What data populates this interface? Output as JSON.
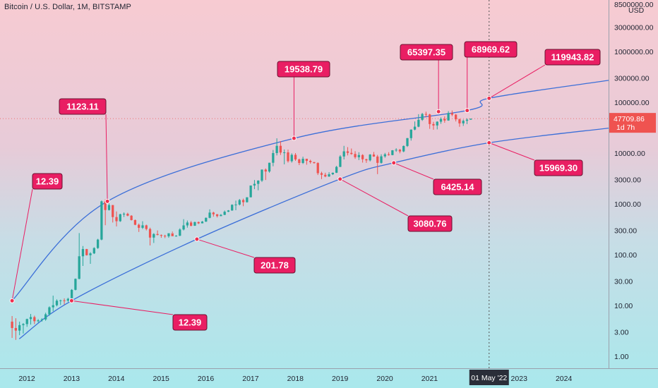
{
  "chart_data": {
    "type": "candlestick",
    "title": "Bitcoin / U.S. Dollar, 1M, BITSTAMP",
    "scale": "log",
    "y_unit": "USD",
    "ylim": [
      0.6,
      8500000
    ],
    "y_ticks": [
      "8500000.00",
      "3000000.00",
      "1000000.00",
      "300000.00",
      "100000.00",
      "30000.00",
      "10000.00",
      "3000.00",
      "1000.00",
      "300.00",
      "100.00",
      "30.00",
      "10.00",
      "3.00",
      "1.00"
    ],
    "x_ticks": [
      "2012",
      "2013",
      "2014",
      "2015",
      "2016",
      "2017",
      "2018",
      "2019",
      "2020",
      "2021",
      "2023",
      "2024"
    ],
    "x_range": [
      2011.4,
      2025.0
    ],
    "current_price": {
      "value": 47709.86,
      "label": "47709.86",
      "countdown": "1d 7h"
    },
    "crosshair_date": {
      "x": 2022.33,
      "label": "01 May '22"
    },
    "candles_x_start": 2011.67,
    "candles": [
      [
        4.8,
        6.2,
        2.3,
        3.6
      ],
      [
        3.6,
        5.6,
        2.1,
        3.2
      ],
      [
        3.2,
        4.8,
        2.6,
        4.1
      ],
      [
        4.1,
        4.5,
        2.8,
        4.3
      ],
      [
        4.3,
        5.5,
        3.8,
        5.4
      ],
      [
        5.4,
        6.8,
        4.2,
        5.9
      ],
      [
        5.9,
        6.3,
        4.3,
        4.9
      ],
      [
        4.9,
        5.4,
        4.6,
        5.1
      ],
      [
        5.1,
        5.6,
        4.8,
        5.3
      ],
      [
        5.3,
        7.2,
        5.0,
        6.7
      ],
      [
        6.7,
        9.6,
        6.3,
        9.2
      ],
      [
        9.2,
        15.6,
        7.7,
        10.1
      ],
      [
        10.1,
        13.2,
        9.6,
        12.4
      ],
      [
        12.4,
        13.0,
        10.2,
        12.6
      ],
      [
        12.6,
        13.8,
        10.5,
        12.4
      ],
      [
        12.4,
        14.2,
        11.8,
        13.5
      ],
      [
        13.5,
        21.0,
        13.2,
        20.3
      ],
      [
        20.3,
        34.0,
        19.8,
        33.4
      ],
      [
        33.4,
        266.0,
        32.8,
        93.0
      ],
      [
        93.0,
        148.0,
        60.0,
        129.0
      ],
      [
        129.0,
        130.0,
        96.0,
        97.6
      ],
      [
        97.6,
        112.0,
        66.0,
        106.0
      ],
      [
        106.0,
        140.0,
        103.0,
        135.0
      ],
      [
        135.0,
        205.0,
        130.0,
        198.0
      ],
      [
        198.0,
        1163.0,
        192.0,
        1123.11
      ],
      [
        1123.0,
        1230.0,
        380.0,
        757.0
      ],
      [
        757.0,
        1030.0,
        740.0,
        947.0
      ],
      [
        947.0,
        950.0,
        430.0,
        550.0
      ],
      [
        550.0,
        710.0,
        360.0,
        456.0
      ],
      [
        456.0,
        640.0,
        442.0,
        625.0
      ],
      [
        625.0,
        680.0,
        552.0,
        639.0
      ],
      [
        639.0,
        670.0,
        570.0,
        585.0
      ],
      [
        585.0,
        600.0,
        470.0,
        480.0
      ],
      [
        480.0,
        492.0,
        380.0,
        388.0
      ],
      [
        388.0,
        410.0,
        280.0,
        338.0
      ],
      [
        338.0,
        455.0,
        320.0,
        378.0
      ],
      [
        378.0,
        390.0,
        300.0,
        320.0
      ],
      [
        320.0,
        340.0,
        152.0,
        217.0
      ],
      [
        217.0,
        265.0,
        170.0,
        255.0
      ],
      [
        255.0,
        300.0,
        240.0,
        244.0
      ],
      [
        244.0,
        250.0,
        215.0,
        236.0
      ],
      [
        236.0,
        247.0,
        212.0,
        230.0
      ],
      [
        230.0,
        250.0,
        215.0,
        264.0
      ],
      [
        264.0,
        285.0,
        270.0,
        231.0
      ],
      [
        231.0,
        242.0,
        226.0,
        236.0
      ],
      [
        236.0,
        330.0,
        232.0,
        313.0
      ],
      [
        313.0,
        500.0,
        300.0,
        377.0
      ],
      [
        377.0,
        470.0,
        340.0,
        430.0
      ],
      [
        430.0,
        460.0,
        360.0,
        371.0
      ],
      [
        371.0,
        446.0,
        368.0,
        438.0
      ],
      [
        438.0,
        450.0,
        400.0,
        414.0
      ],
      [
        414.0,
        460.0,
        414.0,
        448.0
      ],
      [
        448.0,
        540.0,
        440.0,
        531.0
      ],
      [
        531.0,
        780.0,
        520.0,
        674.0
      ],
      [
        674.0,
        700.0,
        560.0,
        624.0
      ],
      [
        624.0,
        630.0,
        540.0,
        575.0
      ],
      [
        575.0,
        630.0,
        570.0,
        608.0
      ],
      [
        608.0,
        740.0,
        600.0,
        700.0
      ],
      [
        700.0,
        755.0,
        690.0,
        742.0
      ],
      [
        742.0,
        980.0,
        730.0,
        960.0
      ],
      [
        960.0,
        1160.0,
        750.0,
        970.0
      ],
      [
        970.0,
        1250.0,
        930.0,
        1190.0
      ],
      [
        1190.0,
        1270.0,
        900.0,
        1080.0
      ],
      [
        1080.0,
        1340.0,
        1060.0,
        1350.0
      ],
      [
        1350.0,
        2300.0,
        1340.0,
        2300.0
      ],
      [
        2300.0,
        2950.0,
        1950.0,
        2480.0
      ],
      [
        2480.0,
        2920.0,
        1850.0,
        2870.0
      ],
      [
        2870.0,
        4760.0,
        2700.0,
        4730.0
      ],
      [
        4730.0,
        4980.0,
        2950.0,
        4340.0
      ],
      [
        4340.0,
        6470.0,
        4110.0,
        6450.0
      ],
      [
        6450.0,
        11500.0,
        5500.0,
        10000.0
      ],
      [
        10000.0,
        19538.79,
        9000.0,
        13900.0
      ],
      [
        13900.0,
        17200.0,
        9200.0,
        10230.0
      ],
      [
        10230.0,
        11780.0,
        6000.0,
        10330.0
      ],
      [
        10330.0,
        11700.0,
        6500.0,
        6930.0
      ],
      [
        6930.0,
        9900.0,
        6500.0,
        9240.0
      ],
      [
        9240.0,
        9990.0,
        7040.0,
        7500.0
      ],
      [
        7500.0,
        7790.0,
        5800.0,
        6390.0
      ],
      [
        6390.0,
        8500.0,
        6100.0,
        7730.0
      ],
      [
        7730.0,
        7500.0,
        5900.0,
        7030.0
      ],
      [
        7030.0,
        7400.0,
        6200.0,
        6630.0
      ],
      [
        6630.0,
        6700.0,
        6200.0,
        6370.0
      ],
      [
        6370.0,
        6600.0,
        3700.0,
        4020.0
      ],
      [
        4020.0,
        4300.0,
        3080.76,
        3740.0
      ],
      [
        3740.0,
        4100.0,
        3350.0,
        3460.0
      ],
      [
        3460.0,
        4200.0,
        3400.0,
        3830.0
      ],
      [
        3830.0,
        4140.0,
        3700.0,
        4100.0
      ],
      [
        4100.0,
        5600.0,
        4050.0,
        5350.0
      ],
      [
        5350.0,
        9100.0,
        5300.0,
        8570.0
      ],
      [
        8570.0,
        13880.0,
        7500.0,
        10820.0
      ],
      [
        10820.0,
        13100.0,
        9000.0,
        10080.0
      ],
      [
        10080.0,
        12300.0,
        9300.0,
        9600.0
      ],
      [
        9600.0,
        10900.0,
        7700.0,
        8300.0
      ],
      [
        8300.0,
        10400.0,
        7300.0,
        9150.0
      ],
      [
        9150.0,
        9500.0,
        6500.0,
        7550.0
      ],
      [
        7550.0,
        7750.0,
        6425.14,
        7200.0
      ],
      [
        7200.0,
        9550.0,
        6850.0,
        9350.0
      ],
      [
        9350.0,
        10500.0,
        8450.0,
        8550.0
      ],
      [
        8550.0,
        9200.0,
        3850.0,
        6420.0
      ],
      [
        6420.0,
        9480.0,
        6200.0,
        8630.0
      ],
      [
        8630.0,
        10080.0,
        8100.0,
        9450.0
      ],
      [
        9450.0,
        10400.0,
        8900.0,
        9140.0
      ],
      [
        9140.0,
        11450.0,
        9050.0,
        11350.0
      ],
      [
        11350.0,
        12470.0,
        10600.0,
        11650.0
      ],
      [
        11650.0,
        12050.0,
        9900.0,
        10780.0
      ],
      [
        10780.0,
        14100.0,
        10400.0,
        13800.0
      ],
      [
        13800.0,
        19850.0,
        13200.0,
        19700.0
      ],
      [
        19700.0,
        29300.0,
        17600.0,
        28990.0
      ],
      [
        28990.0,
        41950.0,
        28100.0,
        33100.0
      ],
      [
        33100.0,
        58350.0,
        32300.0,
        45200.0
      ],
      [
        45200.0,
        61800.0,
        43000.0,
        58800.0
      ],
      [
        58800.0,
        65397.35,
        50500.0,
        57700.0
      ],
      [
        57700.0,
        59500.0,
        30000.0,
        37300.0
      ],
      [
        37300.0,
        41300.0,
        28800.0,
        35000.0
      ],
      [
        35000.0,
        42200.0,
        29300.0,
        41500.0
      ],
      [
        41500.0,
        50500.0,
        37700.0,
        47100.0
      ],
      [
        47100.0,
        52900.0,
        39600.0,
        43800.0
      ],
      [
        43800.0,
        67000.0,
        43300.0,
        61300.0
      ],
      [
        61300.0,
        68969.62,
        53250.0,
        57000.0
      ],
      [
        57000.0,
        59000.0,
        42000.0,
        46200.0
      ],
      [
        46200.0,
        47900.0,
        32950.0,
        38500.0
      ],
      [
        38500.0,
        45850.0,
        34300.0,
        43200.0
      ],
      [
        43200.0,
        48200.0,
        37200.0,
        45500.0
      ],
      [
        45500.0,
        47400.0,
        45300.0,
        47709.86
      ]
    ],
    "series": [
      {
        "name": "",
        "type": "upper_curve",
        "points": [
          [
            2011.67,
            12.39
          ],
          [
            2013.8,
            1123.11
          ],
          [
            2017.97,
            19538.79
          ],
          [
            2021.84,
            68969.62
          ],
          [
            2022.33,
            119943.82
          ],
          [
            2025.0,
            270000.0
          ]
        ]
      },
      {
        "name": "",
        "type": "lower_curve",
        "points": [
          [
            2011.83,
            2.2
          ],
          [
            2013.0,
            12.39
          ],
          [
            2015.8,
            201.78
          ],
          [
            2019.0,
            3080.76
          ],
          [
            2020.2,
            6425.14
          ],
          [
            2022.33,
            15969.3
          ],
          [
            2025.0,
            31000.0
          ]
        ]
      }
    ],
    "annotations": [
      {
        "label": "12.39",
        "value": 12.39,
        "x": 2011.67,
        "y": 12.39
      },
      {
        "label": "1123.11",
        "value": 1123.11,
        "x": 2013.8,
        "y": 1123.11
      },
      {
        "label": "19538.79",
        "value": 19538.79,
        "x": 2017.97,
        "y": 19538.79
      },
      {
        "label": "65397.35",
        "value": 65397.35,
        "x": 2021.2,
        "y": 65397.35
      },
      {
        "label": "68969.62",
        "value": 68969.62,
        "x": 2021.84,
        "y": 68969.62
      },
      {
        "label": "119943.82",
        "value": 119943.82,
        "x": 2022.33,
        "y": 119943.82
      },
      {
        "label": "15969.30",
        "value": 15969.3,
        "x": 2022.33,
        "y": 15969.3
      },
      {
        "label": "6425.14",
        "value": 6425.14,
        "x": 2020.2,
        "y": 6425.14
      },
      {
        "label": "3080.76",
        "value": 3080.76,
        "x": 2019.0,
        "y": 3080.76
      },
      {
        "label": "201.78",
        "value": 201.78,
        "x": 2015.8,
        "y": 201.78
      },
      {
        "label": "12.39",
        "value": 12.39,
        "x": 2013.0,
        "y": 12.39
      }
    ],
    "colors": {
      "up": "#26a69a",
      "down": "#ef5350",
      "curve": "#3c6fd8",
      "callout": "#e91e63",
      "callout_border": "#6a1030",
      "marker": "#ef2e4e"
    }
  }
}
